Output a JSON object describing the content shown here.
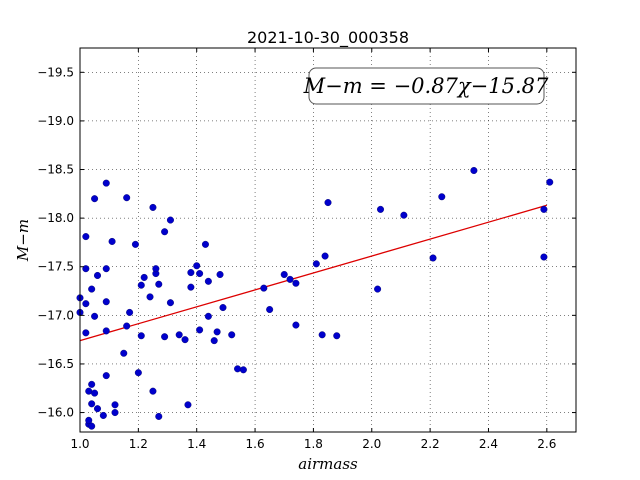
{
  "chart_data": {
    "type": "scatter",
    "title": "2021-10-30_000358",
    "xlabel": "airmass",
    "ylabel": "M−m",
    "xlim": [
      1.0,
      2.7
    ],
    "ylim": [
      -19.75,
      -15.8
    ],
    "y_inverted": true,
    "grid": true,
    "x_ticks": [
      1.0,
      1.2,
      1.4,
      1.6,
      1.8,
      2.0,
      2.2,
      2.4,
      2.6
    ],
    "x_tick_labels": [
      "1.0",
      "1.2",
      "1.4",
      "1.6",
      "1.8",
      "2.0",
      "2.2",
      "2.4",
      "2.6"
    ],
    "y_ticks": [
      -16.0,
      -16.5,
      -17.0,
      -17.5,
      -18.0,
      -18.5,
      -19.0,
      -19.5
    ],
    "y_tick_labels": [
      "−16.0",
      "−16.5",
      "−17.0",
      "−17.5",
      "−18.0",
      "−18.5",
      "−19.0",
      "−19.5"
    ],
    "annotation": "M−m = −0.87χ−15.87",
    "point_color": "#0000cc",
    "fit_color": "#dd0000",
    "fit": {
      "slope": -0.87,
      "intercept": -15.87,
      "x_range": [
        1.0,
        2.6
      ]
    },
    "points": [
      {
        "x": 1.03,
        "y": -15.88
      },
      {
        "x": 1.04,
        "y": -15.86
      },
      {
        "x": 1.03,
        "y": -15.92
      },
      {
        "x": 1.08,
        "y": -15.97
      },
      {
        "x": 1.12,
        "y": -16.0
      },
      {
        "x": 1.27,
        "y": -15.96
      },
      {
        "x": 1.06,
        "y": -16.04
      },
      {
        "x": 1.04,
        "y": -16.09
      },
      {
        "x": 1.12,
        "y": -16.08
      },
      {
        "x": 1.37,
        "y": -16.08
      },
      {
        "x": 1.05,
        "y": -16.2
      },
      {
        "x": 1.03,
        "y": -16.22
      },
      {
        "x": 1.25,
        "y": -16.22
      },
      {
        "x": 1.04,
        "y": -16.29
      },
      {
        "x": 1.09,
        "y": -16.38
      },
      {
        "x": 1.2,
        "y": -16.41
      },
      {
        "x": 1.54,
        "y": -16.45
      },
      {
        "x": 1.56,
        "y": -16.44
      },
      {
        "x": 1.15,
        "y": -16.61
      },
      {
        "x": 1.36,
        "y": -16.75
      },
      {
        "x": 1.46,
        "y": -16.74
      },
      {
        "x": 1.21,
        "y": -16.79
      },
      {
        "x": 1.29,
        "y": -16.78
      },
      {
        "x": 1.34,
        "y": -16.8
      },
      {
        "x": 1.52,
        "y": -16.8
      },
      {
        "x": 1.83,
        "y": -16.8
      },
      {
        "x": 1.88,
        "y": -16.79
      },
      {
        "x": 1.02,
        "y": -16.82
      },
      {
        "x": 1.09,
        "y": -16.84
      },
      {
        "x": 1.41,
        "y": -16.85
      },
      {
        "x": 1.47,
        "y": -16.83
      },
      {
        "x": 1.16,
        "y": -16.89
      },
      {
        "x": 1.74,
        "y": -16.9
      },
      {
        "x": 1.05,
        "y": -16.99
      },
      {
        "x": 1.44,
        "y": -16.99
      },
      {
        "x": 1.0,
        "y": -17.03
      },
      {
        "x": 1.17,
        "y": -17.03
      },
      {
        "x": 1.65,
        "y": -17.06
      },
      {
        "x": 1.49,
        "y": -17.08
      },
      {
        "x": 1.02,
        "y": -17.12
      },
      {
        "x": 1.09,
        "y": -17.14
      },
      {
        "x": 1.31,
        "y": -17.13
      },
      {
        "x": 1.0,
        "y": -17.18
      },
      {
        "x": 1.24,
        "y": -17.19
      },
      {
        "x": 1.04,
        "y": -17.27
      },
      {
        "x": 1.38,
        "y": -17.29
      },
      {
        "x": 1.63,
        "y": -17.28
      },
      {
        "x": 2.02,
        "y": -17.27
      },
      {
        "x": 1.21,
        "y": -17.31
      },
      {
        "x": 1.27,
        "y": -17.32
      },
      {
        "x": 1.44,
        "y": -17.35
      },
      {
        "x": 1.74,
        "y": -17.33
      },
      {
        "x": 1.72,
        "y": -17.37
      },
      {
        "x": 1.22,
        "y": -17.39
      },
      {
        "x": 1.06,
        "y": -17.41
      },
      {
        "x": 1.26,
        "y": -17.43
      },
      {
        "x": 1.38,
        "y": -17.44
      },
      {
        "x": 1.41,
        "y": -17.43
      },
      {
        "x": 1.48,
        "y": -17.42
      },
      {
        "x": 1.7,
        "y": -17.42
      },
      {
        "x": 1.02,
        "y": -17.48
      },
      {
        "x": 1.09,
        "y": -17.48
      },
      {
        "x": 1.26,
        "y": -17.48
      },
      {
        "x": 1.4,
        "y": -17.51
      },
      {
        "x": 1.81,
        "y": -17.53
      },
      {
        "x": 1.84,
        "y": -17.61
      },
      {
        "x": 2.21,
        "y": -17.59
      },
      {
        "x": 2.59,
        "y": -17.6
      },
      {
        "x": 1.19,
        "y": -17.73
      },
      {
        "x": 1.43,
        "y": -17.73
      },
      {
        "x": 1.11,
        "y": -17.76
      },
      {
        "x": 1.02,
        "y": -17.81
      },
      {
        "x": 1.29,
        "y": -17.86
      },
      {
        "x": 1.31,
        "y": -17.98
      },
      {
        "x": 2.11,
        "y": -18.03
      },
      {
        "x": 2.03,
        "y": -18.09
      },
      {
        "x": 2.59,
        "y": -18.09
      },
      {
        "x": 1.25,
        "y": -18.11
      },
      {
        "x": 1.85,
        "y": -18.16
      },
      {
        "x": 1.05,
        "y": -18.2
      },
      {
        "x": 1.16,
        "y": -18.21
      },
      {
        "x": 2.24,
        "y": -18.22
      },
      {
        "x": 1.09,
        "y": -18.36
      },
      {
        "x": 2.61,
        "y": -18.37
      },
      {
        "x": 2.35,
        "y": -18.49
      }
    ]
  }
}
